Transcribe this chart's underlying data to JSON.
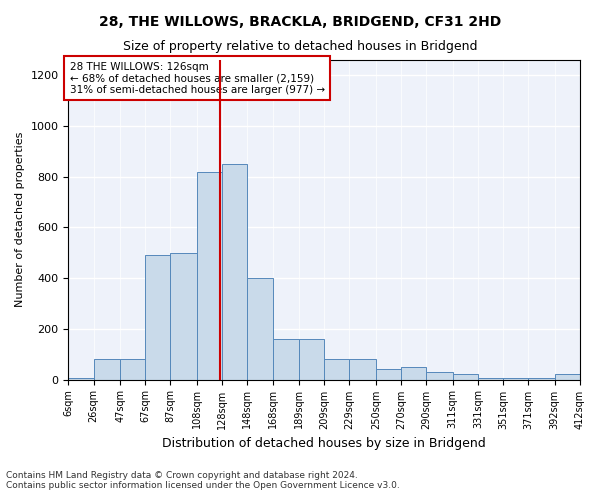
{
  "title1": "28, THE WILLOWS, BRACKLA, BRIDGEND, CF31 2HD",
  "title2": "Size of property relative to detached houses in Bridgend",
  "xlabel": "Distribution of detached houses by size in Bridgend",
  "ylabel": "Number of detached properties",
  "footer1": "Contains HM Land Registry data © Crown copyright and database right 2024.",
  "footer2": "Contains public sector information licensed under the Open Government Licence v3.0.",
  "annotation_line1": "28 THE WILLOWS: 126sqm",
  "annotation_line2": "← 68% of detached houses are smaller (2,159)",
  "annotation_line3": "31% of semi-detached houses are larger (977) →",
  "property_size": 126,
  "bar_color": "#c9daea",
  "bar_edge_color": "#5588bb",
  "vline_color": "#cc0000",
  "background_color": "#eef2fa",
  "bins": [
    6,
    26,
    47,
    67,
    87,
    108,
    128,
    148,
    168,
    189,
    209,
    229,
    250,
    270,
    290,
    311,
    331,
    351,
    371,
    392,
    412
  ],
  "bin_labels": [
    "6sqm",
    "26sqm",
    "47sqm",
    "67sqm",
    "87sqm",
    "108sqm",
    "128sqm",
    "148sqm",
    "168sqm",
    "189sqm",
    "209sqm",
    "229sqm",
    "250sqm",
    "270sqm",
    "290sqm",
    "311sqm",
    "331sqm",
    "351sqm",
    "371sqm",
    "392sqm",
    "412sqm"
  ],
  "counts": [
    5,
    80,
    80,
    490,
    500,
    820,
    850,
    400,
    160,
    160,
    80,
    80,
    40,
    50,
    30,
    20,
    5,
    5,
    5,
    20
  ],
  "ylim": [
    0,
    1260
  ],
  "yticks": [
    0,
    200,
    400,
    600,
    800,
    1000,
    1200
  ]
}
